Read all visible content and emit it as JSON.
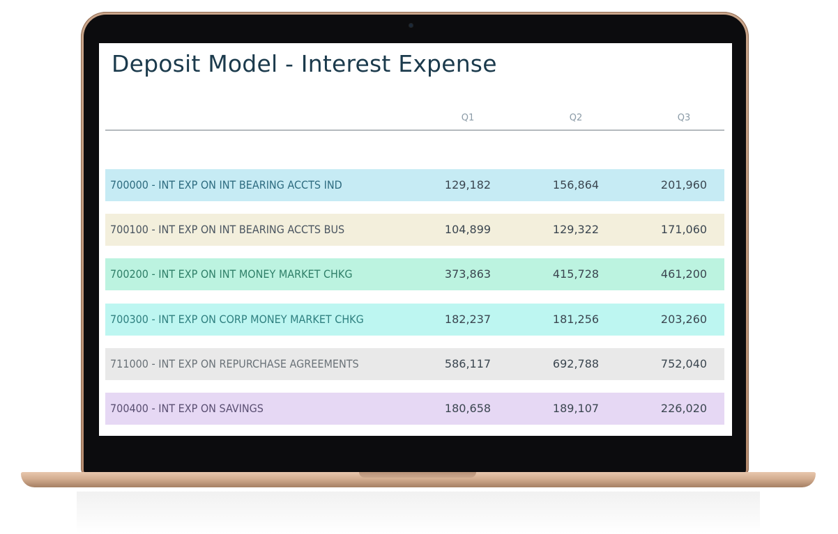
{
  "report": {
    "title": "Deposit Model - Interest Expense",
    "columns": [
      "Q1",
      "Q2",
      "Q3"
    ],
    "rows": [
      {
        "label": "700000 - INT EXP ON INT BEARING ACCTS IND",
        "q1": "129,182",
        "q2": "156,864",
        "q3": "201,960",
        "bg": "#c6ebf4",
        "fg": "#2d6b7f"
      },
      {
        "label": "700100 - INT EXP ON INT BEARING ACCTS BUS",
        "q1": "104,899",
        "q2": "129,322",
        "q3": "171,060",
        "bg": "#f3efdc",
        "fg": "#4a5560"
      },
      {
        "label": "700200 - INT EXP ON INT MONEY MARKET CHKG",
        "q1": "373,863",
        "q2": "415,728",
        "q3": "461,200",
        "bg": "#bcf3e0",
        "fg": "#2f7f68"
      },
      {
        "label": "700300 - INT EXP ON CORP MONEY MARKET CHKG",
        "q1": "182,237",
        "q2": "181,256",
        "q3": "203,260",
        "bg": "#bdf6f1",
        "fg": "#2f8080"
      },
      {
        "label": "711000 - INT EXP ON REPURCHASE AGREEMENTS",
        "q1": "586,117",
        "q2": "692,788",
        "q3": "752,040",
        "bg": "#e9e9e9",
        "fg": "#6a7278"
      },
      {
        "label": "700400 - INT EXP ON SAVINGS",
        "q1": "180,658",
        "q2": "189,107",
        "q3": "226,020",
        "bg": "#e6d8f4",
        "fg": "#5a4f72"
      }
    ]
  }
}
